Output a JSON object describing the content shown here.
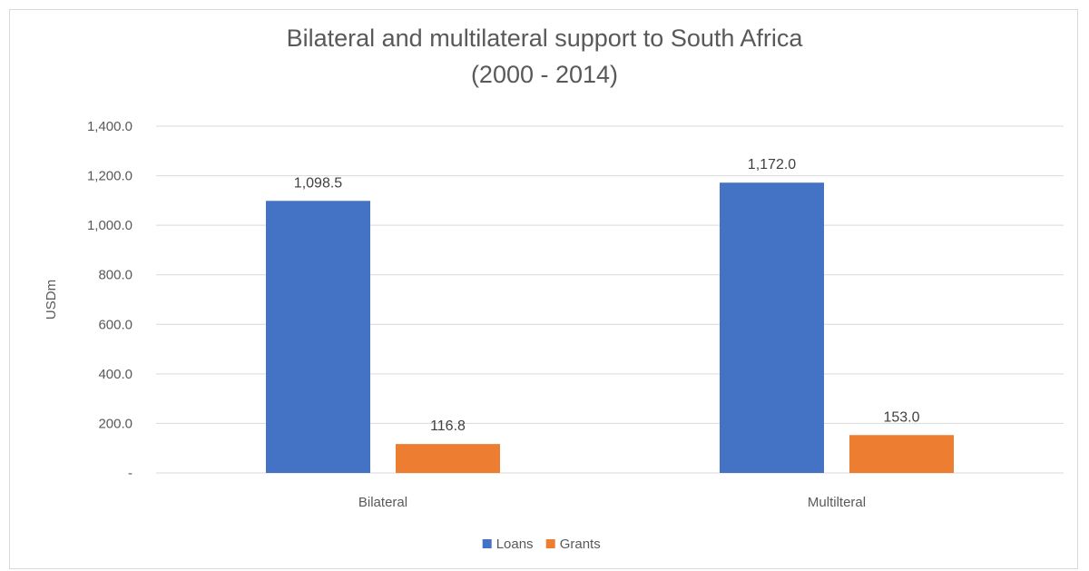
{
  "chart_data": {
    "type": "bar",
    "title_lines": [
      "Bilateral and multilateral support to South Africa",
      "(2000 - 2014)"
    ],
    "xlabel": "",
    "ylabel": "USDm",
    "categories": [
      "Bilateral",
      "Multilteral"
    ],
    "series": [
      {
        "name": "Loans",
        "color": "#4472c4",
        "values": [
          1098.5,
          1172.0
        ],
        "labels": [
          "1,098.5",
          "1,172.0"
        ]
      },
      {
        "name": "Grants",
        "color": "#ed7d31",
        "values": [
          116.8,
          153.0
        ],
        "labels": [
          "116.8",
          "153.0"
        ]
      }
    ],
    "ylim": [
      0,
      1400
    ],
    "yticks": [
      0,
      200,
      400,
      600,
      800,
      1000,
      1200,
      1400
    ],
    "ytick_labels": [
      "-",
      "200.0",
      "400.0",
      "600.0",
      "800.0",
      "1,000.0",
      "1,200.0",
      "1,400.0"
    ],
    "grid": true,
    "legend_position": "bottom-center"
  }
}
